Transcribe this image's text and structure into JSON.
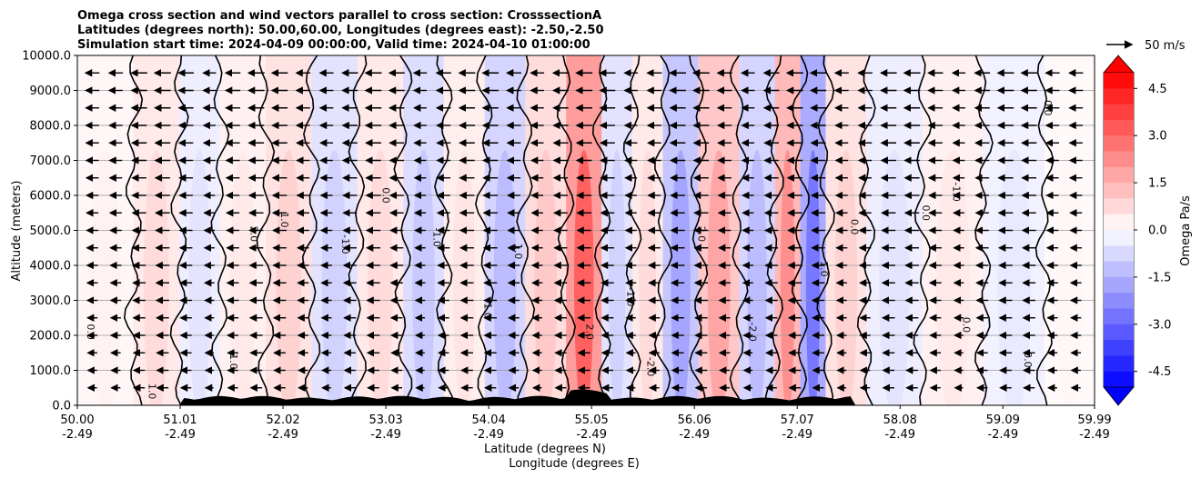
{
  "chart_data": {
    "type": "heatmap",
    "title_lines": [
      "Omega cross section and wind vectors parallel to cross section: CrosssectionA",
      "Latitudes (degrees north): 50.00,60.00, Longitudes (degrees east): -2.50,-2.50",
      "Simulation start time: 2024-04-09 00:00:00, Valid time: 2024-04-10 01:00:00"
    ],
    "ylabel": "Altitude (meters)",
    "xlabel_lat": "Latitude (degrees N)",
    "xlabel_lon": "Longitude (degrees E)",
    "ylim": [
      0,
      10000
    ],
    "yticks": [
      "0.0",
      "1000.0",
      "2000.0",
      "3000.0",
      "4000.0",
      "5000.0",
      "6000.0",
      "7000.0",
      "8000.0",
      "9000.0",
      "10000.0"
    ],
    "ytick_values": [
      0,
      1000,
      2000,
      3000,
      4000,
      5000,
      6000,
      7000,
      8000,
      9000,
      10000
    ],
    "xlim": [
      50.0,
      59.99
    ],
    "xtick_lat": [
      "50.00",
      "51.01",
      "52.02",
      "53.03",
      "54.04",
      "55.05",
      "56.06",
      "57.07",
      "58.08",
      "59.09",
      "59.99"
    ],
    "xtick_lat_values": [
      50.0,
      51.01,
      52.02,
      53.03,
      54.04,
      55.05,
      56.06,
      57.07,
      58.08,
      59.09,
      59.99
    ],
    "xtick_lon": [
      "-2.49",
      "-2.49",
      "-2.49",
      "-2.49",
      "-2.49",
      "-2.49",
      "-2.49",
      "-2.49",
      "-2.49",
      "-2.49",
      "-2.49"
    ],
    "colorbar": {
      "label": "Omega Pa/s",
      "ticks": [
        "4.5",
        "3.0",
        "1.5",
        "0.0",
        "-1.5",
        "-3.0",
        "-4.5"
      ],
      "tick_values": [
        4.5,
        3.0,
        1.5,
        0.0,
        -1.5,
        -3.0,
        -4.5
      ],
      "vmin": -5.0,
      "vmax": 5.0,
      "extend": "both"
    },
    "quiver_key": "50 m/s",
    "omega_bands": [
      {
        "lat": 50.3,
        "value": 0.3
      },
      {
        "lat": 50.8,
        "value": 0.8
      },
      {
        "lat": 51.2,
        "value": -0.6
      },
      {
        "lat": 51.6,
        "value": 0.5
      },
      {
        "lat": 52.1,
        "value": 1.0
      },
      {
        "lat": 52.5,
        "value": -1.0
      },
      {
        "lat": 53.0,
        "value": 0.8
      },
      {
        "lat": 53.4,
        "value": -1.2
      },
      {
        "lat": 53.8,
        "value": 0.6
      },
      {
        "lat": 54.2,
        "value": -1.5
      },
      {
        "lat": 54.6,
        "value": 1.2
      },
      {
        "lat": 55.0,
        "value": 3.5
      },
      {
        "lat": 55.3,
        "value": -1.0
      },
      {
        "lat": 55.6,
        "value": 0.8
      },
      {
        "lat": 55.9,
        "value": -2.0
      },
      {
        "lat": 56.3,
        "value": 2.0
      },
      {
        "lat": 56.7,
        "value": -1.5
      },
      {
        "lat": 57.0,
        "value": 2.5
      },
      {
        "lat": 57.2,
        "value": -3.0
      },
      {
        "lat": 57.5,
        "value": 1.0
      },
      {
        "lat": 58.0,
        "value": -0.6
      },
      {
        "lat": 58.6,
        "value": 0.5
      },
      {
        "lat": 59.2,
        "value": -0.5
      },
      {
        "lat": 59.8,
        "value": 0.2
      }
    ],
    "wind_u_m_s": -10,
    "contour_labels": [
      {
        "text": "0.0",
        "lat": 50.1,
        "z": 2100
      },
      {
        "text": "1.0",
        "lat": 50.7,
        "z": 400
      },
      {
        "text": "-1.0",
        "lat": 51.5,
        "z": 1300
      },
      {
        "text": "2.0",
        "lat": 51.7,
        "z": 4900
      },
      {
        "text": "1.0",
        "lat": 52.0,
        "z": 5300
      },
      {
        "text": "-1.0",
        "lat": 52.6,
        "z": 4600
      },
      {
        "text": "0.0",
        "lat": 53.0,
        "z": 6000
      },
      {
        "text": "-1.0",
        "lat": 53.5,
        "z": 4800
      },
      {
        "text": "1.0",
        "lat": 54.0,
        "z": 2700
      },
      {
        "text": "1.0",
        "lat": 54.3,
        "z": 4400
      },
      {
        "text": "2.0",
        "lat": 55.0,
        "z": 2100
      },
      {
        "text": "-1.0",
        "lat": 55.4,
        "z": 3100
      },
      {
        "text": "-2.0",
        "lat": 55.6,
        "z": 1100
      },
      {
        "text": "2.0",
        "lat": 56.1,
        "z": 4900
      },
      {
        "text": "-2.0",
        "lat": 56.6,
        "z": 2100
      },
      {
        "text": "1.0",
        "lat": 57.3,
        "z": 3900
      },
      {
        "text": "0.0",
        "lat": 57.6,
        "z": 5100
      },
      {
        "text": "0.0",
        "lat": 58.3,
        "z": 5500
      },
      {
        "text": "0.0",
        "lat": 58.7,
        "z": 2300
      },
      {
        "text": "0.0",
        "lat": 59.3,
        "z": 1300
      },
      {
        "text": "-1.0",
        "lat": 58.6,
        "z": 6100
      },
      {
        "text": "0.0",
        "lat": 59.5,
        "z": 8500
      }
    ]
  }
}
